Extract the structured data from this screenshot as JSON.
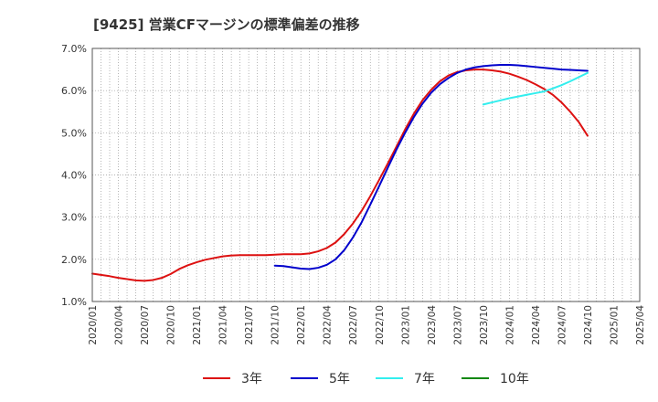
{
  "chart_data": {
    "type": "line",
    "title": "[9425]  営業CFマージンの標準偏差の推移",
    "xlabel": "",
    "ylabel": "",
    "ylim": [
      1.0,
      7.0
    ],
    "yticks": [
      "1.0%",
      "2.0%",
      "3.0%",
      "4.0%",
      "5.0%",
      "6.0%",
      "7.0%"
    ],
    "xticks": [
      "2020/01",
      "2020/04",
      "2020/07",
      "2020/10",
      "2021/01",
      "2021/04",
      "2021/07",
      "2021/10",
      "2022/01",
      "2022/04",
      "2022/07",
      "2022/10",
      "2023/01",
      "2023/04",
      "2023/07",
      "2023/10",
      "2024/01",
      "2024/04",
      "2024/07",
      "2024/10",
      "2025/01",
      "2025/04"
    ],
    "grid": true,
    "legend_position": "bottom",
    "series": [
      {
        "name": "3年",
        "color": "#dd1111",
        "points": [
          [
            "2020/01",
            1.66
          ],
          [
            "2020/02",
            1.63
          ],
          [
            "2020/03",
            1.6
          ],
          [
            "2020/04",
            1.56
          ],
          [
            "2020/05",
            1.53
          ],
          [
            "2020/06",
            1.5
          ],
          [
            "2020/07",
            1.49
          ],
          [
            "2020/08",
            1.51
          ],
          [
            "2020/09",
            1.56
          ],
          [
            "2020/10",
            1.65
          ],
          [
            "2020/11",
            1.77
          ],
          [
            "2020/12",
            1.86
          ],
          [
            "2021/01",
            1.93
          ],
          [
            "2021/02",
            1.99
          ],
          [
            "2021/03",
            2.03
          ],
          [
            "2021/04",
            2.07
          ],
          [
            "2021/05",
            2.09
          ],
          [
            "2021/06",
            2.1
          ],
          [
            "2021/07",
            2.1
          ],
          [
            "2021/08",
            2.1
          ],
          [
            "2021/09",
            2.1
          ],
          [
            "2021/10",
            2.11
          ],
          [
            "2021/11",
            2.12
          ],
          [
            "2021/12",
            2.12
          ],
          [
            "2022/01",
            2.12
          ],
          [
            "2022/02",
            2.14
          ],
          [
            "2022/03",
            2.19
          ],
          [
            "2022/04",
            2.27
          ],
          [
            "2022/05",
            2.4
          ],
          [
            "2022/06",
            2.6
          ],
          [
            "2022/07",
            2.85
          ],
          [
            "2022/08",
            3.15
          ],
          [
            "2022/09",
            3.5
          ],
          [
            "2022/10",
            3.88
          ],
          [
            "2022/11",
            4.27
          ],
          [
            "2022/12",
            4.67
          ],
          [
            "2023/01",
            5.08
          ],
          [
            "2023/02",
            5.45
          ],
          [
            "2023/03",
            5.77
          ],
          [
            "2023/04",
            6.02
          ],
          [
            "2023/05",
            6.22
          ],
          [
            "2023/06",
            6.36
          ],
          [
            "2023/07",
            6.44
          ],
          [
            "2023/08",
            6.48
          ],
          [
            "2023/09",
            6.5
          ],
          [
            "2023/10",
            6.5
          ],
          [
            "2023/11",
            6.48
          ],
          [
            "2023/12",
            6.45
          ],
          [
            "2024/01",
            6.4
          ],
          [
            "2024/02",
            6.33
          ],
          [
            "2024/03",
            6.25
          ],
          [
            "2024/04",
            6.15
          ],
          [
            "2024/05",
            6.04
          ],
          [
            "2024/06",
            5.9
          ],
          [
            "2024/07",
            5.72
          ],
          [
            "2024/08",
            5.5
          ],
          [
            "2024/09",
            5.25
          ],
          [
            "2024/10",
            4.93
          ]
        ]
      },
      {
        "name": "5年",
        "color": "#0000cc",
        "points": [
          [
            "2021/10",
            1.85
          ],
          [
            "2021/11",
            1.84
          ],
          [
            "2021/12",
            1.81
          ],
          [
            "2022/01",
            1.78
          ],
          [
            "2022/02",
            1.77
          ],
          [
            "2022/03",
            1.8
          ],
          [
            "2022/04",
            1.87
          ],
          [
            "2022/05",
            2.0
          ],
          [
            "2022/06",
            2.22
          ],
          [
            "2022/07",
            2.52
          ],
          [
            "2022/08",
            2.88
          ],
          [
            "2022/09",
            3.3
          ],
          [
            "2022/10",
            3.73
          ],
          [
            "2022/11",
            4.17
          ],
          [
            "2022/12",
            4.6
          ],
          [
            "2023/01",
            5.0
          ],
          [
            "2023/02",
            5.37
          ],
          [
            "2023/03",
            5.69
          ],
          [
            "2023/04",
            5.95
          ],
          [
            "2023/05",
            6.15
          ],
          [
            "2023/06",
            6.3
          ],
          [
            "2023/07",
            6.42
          ],
          [
            "2023/08",
            6.5
          ],
          [
            "2023/09",
            6.55
          ],
          [
            "2023/10",
            6.58
          ],
          [
            "2023/11",
            6.6
          ],
          [
            "2023/12",
            6.61
          ],
          [
            "2024/01",
            6.61
          ],
          [
            "2024/02",
            6.6
          ],
          [
            "2024/03",
            6.58
          ],
          [
            "2024/04",
            6.56
          ],
          [
            "2024/05",
            6.54
          ],
          [
            "2024/06",
            6.52
          ],
          [
            "2024/07",
            6.5
          ],
          [
            "2024/08",
            6.49
          ],
          [
            "2024/09",
            6.48
          ],
          [
            "2024/10",
            6.47
          ]
        ]
      },
      {
        "name": "7年",
        "color": "#33eeee",
        "points": [
          [
            "2023/10",
            5.67
          ],
          [
            "2023/11",
            5.72
          ],
          [
            "2023/12",
            5.77
          ],
          [
            "2024/01",
            5.82
          ],
          [
            "2024/02",
            5.86
          ],
          [
            "2024/03",
            5.9
          ],
          [
            "2024/04",
            5.94
          ],
          [
            "2024/05",
            5.98
          ],
          [
            "2024/06",
            6.05
          ],
          [
            "2024/07",
            6.13
          ],
          [
            "2024/08",
            6.22
          ],
          [
            "2024/09",
            6.32
          ],
          [
            "2024/10",
            6.42
          ]
        ]
      },
      {
        "name": "10年",
        "color": "#118811",
        "points": []
      }
    ]
  }
}
